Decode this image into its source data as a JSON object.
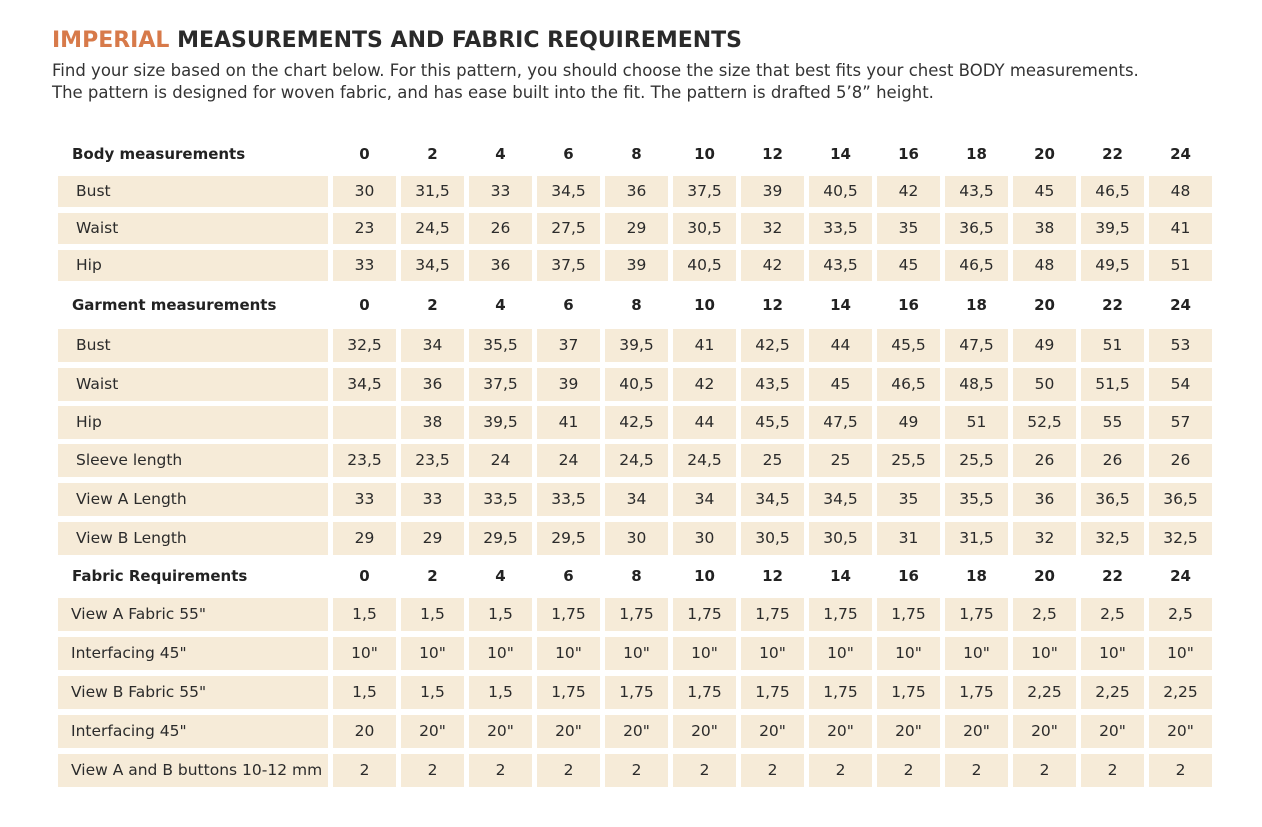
{
  "header": {
    "title": {
      "highlight": "IMPERIAL",
      "rest": "MEASUREMENTS AND FABRIC REQUIREMENTS"
    },
    "description": [
      "Find your size based on the chart below. For this pattern, you should choose the size that best fits your chest BODY measurements.",
      "The pattern is designed for woven fabric, and has ease built into the fit. The pattern is drafted 5’8” height."
    ]
  },
  "table": {
    "sections": [
      {
        "label": "Body measurements",
        "sizes": [
          "0",
          "2",
          "4",
          "6",
          "8",
          "10",
          "12",
          "14",
          "16",
          "18",
          "20",
          "22",
          "24"
        ],
        "rows": [
          {
            "label": "Bust",
            "values": [
              "30",
              "31,5",
              "33",
              "34,5",
              "36",
              "37,5",
              "39",
              "40,5",
              "42",
              "43,5",
              "45",
              "46,5",
              "48"
            ]
          },
          {
            "label": "Waist",
            "values": [
              "23",
              "24,5",
              "26",
              "27,5",
              "29",
              "30,5",
              "32",
              "33,5",
              "35",
              "36,5",
              "38",
              "39,5",
              "41"
            ]
          },
          {
            "label": "Hip",
            "values": [
              "33",
              "34,5",
              "36",
              "37,5",
              "39",
              "40,5",
              "42",
              "43,5",
              "45",
              "46,5",
              "48",
              "49,5",
              "51"
            ]
          }
        ]
      },
      {
        "label": "Garment measurements",
        "sizes": [
          "0",
          "2",
          "4",
          "6",
          "8",
          "10",
          "12",
          "14",
          "16",
          "18",
          "20",
          "22",
          "24"
        ],
        "rows": [
          {
            "label": "Bust",
            "values": [
              "32,5",
              "34",
              "35,5",
              "37",
              "39,5",
              "41",
              "42,5",
              "44",
              "45,5",
              "47,5",
              "49",
              "51",
              "53"
            ]
          },
          {
            "label": "Waist",
            "values": [
              "34,5",
              "36",
              "37,5",
              "39",
              "40,5",
              "42",
              "43,5",
              "45",
              "46,5",
              "48,5",
              "50",
              "51,5",
              "54"
            ]
          },
          {
            "label": "Hip",
            "values": [
              null,
              "38",
              "39,5",
              "41",
              "42,5",
              "44",
              "45,5",
              "47,5",
              "49",
              "51",
              "52,5",
              "55",
              "57"
            ]
          },
          {
            "label": "Sleeve length",
            "values": [
              "23,5",
              "23,5",
              "24",
              "24",
              "24,5",
              "24,5",
              "25",
              "25",
              "25,5",
              "25,5",
              "26",
              "26",
              "26"
            ]
          },
          {
            "label": "View A Length",
            "values": [
              "33",
              "33",
              "33,5",
              "33,5",
              "34",
              "34",
              "34,5",
              "34,5",
              "35",
              "35,5",
              "36",
              "36,5",
              "36,5"
            ]
          },
          {
            "label": "View B Length",
            "values": [
              "29",
              "29",
              "29,5",
              "29,5",
              "30",
              "30",
              "30,5",
              "30,5",
              "31",
              "31,5",
              "32",
              "32,5",
              "32,5"
            ]
          }
        ]
      },
      {
        "label": "Fabric Requirements",
        "sizes": [
          "0",
          "2",
          "4",
          "6",
          "8",
          "10",
          "12",
          "14",
          "16",
          "18",
          "20",
          "22",
          "24"
        ],
        "rows": [
          {
            "label": "View A Fabric 55\"",
            "values": [
              "1,5",
              "1,5",
              "1,5",
              "1,75",
              "1,75",
              "1,75",
              "1,75",
              "1,75",
              "1,75",
              "1,75",
              "2,5",
              "2,5",
              "2,5"
            ]
          },
          {
            "label": "Interfacing 45\"",
            "values": [
              "10\"",
              "10\"",
              "10\"",
              "10\"",
              "10\"",
              "10\"",
              "10\"",
              "10\"",
              "10\"",
              "10\"",
              "10\"",
              "10\"",
              "10\""
            ]
          },
          {
            "label": "View B Fabric 55\"",
            "values": [
              "1,5",
              "1,5",
              "1,5",
              "1,75",
              "1,75",
              "1,75",
              "1,75",
              "1,75",
              "1,75",
              "1,75",
              "2,25",
              "2,25",
              "2,25"
            ]
          },
          {
            "label": "Interfacing 45\"",
            "values": [
              "20",
              "20\"",
              "20\"",
              "20\"",
              "20\"",
              "20\"",
              "20\"",
              "20\"",
              "20\"",
              "20\"",
              "20\"",
              "20\"",
              "20\""
            ]
          },
          {
            "label": "View A and B buttons 10-12 mm",
            "values": [
              "2",
              "2",
              "2",
              "2",
              "2",
              "2",
              "2",
              "2",
              "2",
              "2",
              "2",
              "2",
              "2"
            ]
          }
        ]
      }
    ]
  }
}
